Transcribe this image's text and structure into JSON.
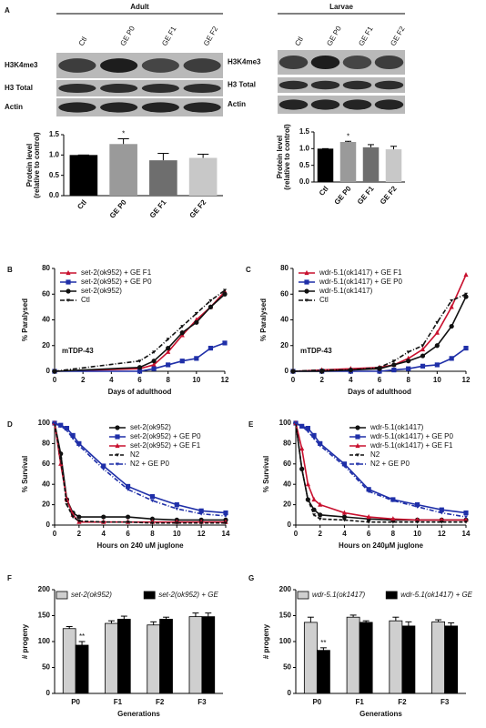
{
  "blots": [
    {
      "panel": "A",
      "title": "Adult",
      "lanes": [
        "Ctl",
        "GE P0",
        "GE F1",
        "GE F2"
      ],
      "rows": [
        "H3K4me3",
        "H3 Total",
        "Actin"
      ]
    },
    {
      "title": "Larvae",
      "lanes": [
        "Ctl",
        "GE P0",
        "GE F1",
        "GE F2"
      ],
      "rows": [
        "H3K4me3",
        "H3 Total",
        "Actin"
      ]
    }
  ],
  "chart_data": [
    {
      "type": "bar",
      "ylabel": [
        "Protein level",
        "(relative to control)"
      ],
      "categories": [
        "Ctl",
        "GE P0",
        "GE F1",
        "GE F2"
      ],
      "values": [
        1.0,
        1.27,
        0.87,
        0.93
      ],
      "errors": [
        0,
        0.13,
        0.17,
        0.09
      ],
      "colors": [
        "#000000",
        "#9a9a9a",
        "#6e6e6e",
        "#c8c8c8"
      ],
      "ylim": [
        0,
        1.5
      ],
      "yticks": [
        {
          "value": 0,
          "label": "0.0"
        },
        {
          "value": 0.5,
          "label": "0.5"
        },
        {
          "value": 1,
          "label": "1.0"
        },
        {
          "value": 1.5,
          "label": "1.5"
        }
      ],
      "annotations": [
        {
          "text": "*",
          "x": "GE P0"
        }
      ]
    },
    {
      "type": "bar",
      "ylabel": [
        "Protein level",
        "(relative to control)"
      ],
      "categories": [
        "Ctl",
        "GE P0",
        "GE F1",
        "GE F2"
      ],
      "values": [
        1.0,
        1.2,
        1.04,
        0.98
      ],
      "errors": [
        0,
        0.02,
        0.08,
        0.09
      ],
      "colors": [
        "#000000",
        "#9a9a9a",
        "#6e6e6e",
        "#c8c8c8"
      ],
      "ylim": [
        0,
        1.5
      ],
      "yticks": [
        {
          "value": 0,
          "label": "0.0"
        },
        {
          "value": 0.5,
          "label": "0.5"
        },
        {
          "value": 1,
          "label": "1.0"
        },
        {
          "value": 1.5,
          "label": "1.5"
        }
      ],
      "annotations": [
        {
          "text": "*",
          "x": "GE P0"
        }
      ]
    },
    {
      "type": "line",
      "panel": "B",
      "xlabel": "Days of adulthood",
      "ylabel": "% Paralysed",
      "annotation": "mTDP-43",
      "legend": "upper left",
      "x": [
        0,
        6,
        7,
        8,
        9,
        10,
        11,
        12
      ],
      "xlim": [
        0,
        12
      ],
      "xticks": [
        0,
        2,
        4,
        6,
        8,
        10,
        12
      ],
      "ylim": [
        0,
        80
      ],
      "yticks": [
        0,
        20,
        40,
        60,
        80
      ],
      "series": [
        {
          "name": "set-2(ok952) + GE F1",
          "color": "#c8102e",
          "marker": "triangle",
          "dash": "solid",
          "values": [
            0,
            2,
            5,
            15,
            28,
            40,
            50,
            62
          ]
        },
        {
          "name": "set-2(ok952) + GE P0",
          "color": "#1f2fa8",
          "marker": "square",
          "dash": "solid",
          "values": [
            0,
            0,
            2,
            5,
            8,
            10,
            18,
            22
          ]
        },
        {
          "name": "set-2(ok952)",
          "color": "#111111",
          "marker": "circle",
          "dash": "solid",
          "values": [
            0,
            3,
            8,
            18,
            30,
            38,
            50,
            60
          ]
        },
        {
          "name": "Ctl",
          "color": "#111111",
          "marker": "triangle-down",
          "dash": "dashdot",
          "values": [
            0,
            8,
            15,
            25,
            35,
            45,
            55,
            63
          ]
        }
      ]
    },
    {
      "type": "line",
      "panel": "C",
      "xlabel": "Days of adulthood",
      "ylabel": "% Paralysed",
      "annotation": "mTDP-43",
      "legend": "upper left",
      "x": [
        0,
        2,
        4,
        6,
        7,
        8,
        9,
        10,
        11,
        12
      ],
      "xlim": [
        0,
        12
      ],
      "xticks": [
        0,
        2,
        4,
        6,
        8,
        10,
        12
      ],
      "ylim": [
        0,
        80
      ],
      "yticks": [
        0,
        20,
        40,
        60,
        80
      ],
      "series": [
        {
          "name": "wdr-5.1(ok1417) + GE F1",
          "color": "#c8102e",
          "marker": "triangle",
          "dash": "solid",
          "values": [
            0,
            1,
            2,
            3,
            5,
            10,
            17,
            30,
            50,
            75
          ]
        },
        {
          "name": "wdr-5.1(ok1417) + GE P0",
          "color": "#1f2fa8",
          "marker": "square",
          "dash": "solid",
          "values": [
            0,
            0,
            0,
            0,
            1,
            2,
            4,
            5,
            10,
            18
          ]
        },
        {
          "name": "wdr-5.1(ok1417)",
          "color": "#111111",
          "marker": "circle",
          "dash": "solid",
          "values": [
            0,
            0,
            1,
            2,
            5,
            8,
            12,
            20,
            35,
            58
          ]
        },
        {
          "name": "Ctl",
          "color": "#111111",
          "marker": "triangle-down",
          "dash": "dashdot",
          "values": [
            0,
            1,
            1,
            3,
            8,
            15,
            20,
            38,
            55,
            60
          ]
        }
      ]
    },
    {
      "type": "line",
      "panel": "D",
      "xlabel": "Hours on 240 uM juglone",
      "ylabel": "% Survival",
      "legend": "upper right",
      "x": [
        0,
        0.5,
        1,
        1.5,
        2,
        4,
        6,
        8,
        10,
        12,
        14
      ],
      "xlim": [
        0,
        14
      ],
      "xticks": [
        0,
        2,
        4,
        6,
        8,
        10,
        12,
        14
      ],
      "ylim": [
        0,
        100
      ],
      "yticks": [
        0,
        20,
        40,
        60,
        80,
        100
      ],
      "series": [
        {
          "name": "set-2(ok952)",
          "color": "#111111",
          "marker": "circle",
          "dash": "solid",
          "values": [
            100,
            70,
            25,
            12,
            8,
            8,
            8,
            6,
            5,
            5,
            5
          ]
        },
        {
          "name": "set-2(ok952) + GE P0",
          "color": "#1f2fa8",
          "marker": "square",
          "dash": "solid",
          "values": [
            100,
            98,
            95,
            88,
            80,
            58,
            38,
            28,
            20,
            14,
            12
          ]
        },
        {
          "name": "set-2(ok952) + GE F1",
          "color": "#c8102e",
          "marker": "triangle",
          "dash": "solid",
          "values": [
            100,
            60,
            25,
            10,
            3,
            3,
            3,
            3,
            3,
            3,
            3
          ]
        },
        {
          "name": "N2",
          "color": "#111111",
          "marker": "triangle-down",
          "dash": "dashed",
          "values": [
            100,
            65,
            20,
            8,
            4,
            3,
            3,
            2,
            2,
            2,
            2
          ]
        },
        {
          "name": "N2 + GE P0",
          "color": "#1f2fa8",
          "marker": "triangle-down",
          "dash": "dashdot",
          "values": [
            100,
            97,
            93,
            85,
            78,
            55,
            35,
            24,
            16,
            11,
            9
          ]
        }
      ]
    },
    {
      "type": "line",
      "panel": "E",
      "xlabel": "Hours on 240μM juglone",
      "ylabel": "% Survival",
      "legend": "upper right",
      "x": [
        0,
        0.5,
        1,
        1.5,
        2,
        4,
        6,
        8,
        10,
        12,
        14
      ],
      "xlim": [
        0,
        14
      ],
      "xticks": [
        0,
        2,
        4,
        6,
        8,
        10,
        12,
        14
      ],
      "ylim": [
        0,
        100
      ],
      "yticks": [
        0,
        20,
        40,
        60,
        80,
        100
      ],
      "series": [
        {
          "name": "wdr-5.1(ok1417)",
          "color": "#111111",
          "marker": "circle",
          "dash": "solid",
          "values": [
            100,
            55,
            25,
            15,
            10,
            8,
            6,
            5,
            5,
            5,
            5
          ]
        },
        {
          "name": "wdr-5.1(ok1417) + GE P0",
          "color": "#1f2fa8",
          "marker": "square",
          "dash": "solid",
          "values": [
            100,
            97,
            95,
            88,
            80,
            60,
            35,
            25,
            20,
            15,
            12
          ]
        },
        {
          "name": "wdr-5.1(ok1417) + GE F1",
          "color": "#c8102e",
          "marker": "triangle",
          "dash": "solid",
          "values": [
            100,
            75,
            40,
            25,
            20,
            12,
            8,
            6,
            5,
            5,
            5
          ]
        },
        {
          "name": "N2",
          "color": "#111111",
          "marker": "triangle-down",
          "dash": "dashed",
          "values": [
            100,
            55,
            25,
            10,
            6,
            5,
            3,
            3,
            3,
            3,
            3
          ]
        },
        {
          "name": "N2 + GE P0",
          "color": "#1f2fa8",
          "marker": "triangle-down",
          "dash": "dashdot",
          "values": [
            100,
            97,
            92,
            85,
            78,
            58,
            33,
            24,
            18,
            12,
            8
          ]
        }
      ]
    },
    {
      "type": "grouped-bar",
      "panel": "F",
      "xlabel": "Generations",
      "ylabel": "# progeny",
      "categories": [
        "P0",
        "F1",
        "F2",
        "F3"
      ],
      "ylim": [
        0,
        200
      ],
      "yticks": [
        0,
        50,
        100,
        150,
        200
      ],
      "series": [
        {
          "name": "set-2(ok952)",
          "color": "#cfcfcf",
          "values": [
            125,
            135,
            132,
            148
          ],
          "errors": [
            4,
            5,
            6,
            7
          ]
        },
        {
          "name": "set-2(ok952) + GE",
          "color": "#000000",
          "values": [
            93,
            143,
            143,
            148
          ],
          "errors": [
            7,
            6,
            4,
            7
          ]
        }
      ],
      "annotations": [
        {
          "text": "**",
          "x": "P0",
          "series": "set-2(ok952) + GE"
        }
      ]
    },
    {
      "type": "grouped-bar",
      "panel": "G",
      "xlabel": "Generations",
      "ylabel": "# progeny",
      "categories": [
        "P0",
        "F1",
        "F2",
        "F3"
      ],
      "ylim": [
        0,
        200
      ],
      "yticks": [
        0,
        50,
        100,
        150,
        200
      ],
      "series": [
        {
          "name": "wdr-5.1(ok1417)",
          "color": "#cfcfcf",
          "values": [
            137,
            147,
            140,
            138
          ],
          "errors": [
            10,
            4,
            7,
            4
          ]
        },
        {
          "name": "wdr-5.1(ok1417) + GE",
          "color": "#000000",
          "values": [
            83,
            137,
            130,
            130
          ],
          "errors": [
            5,
            3,
            8,
            6
          ]
        }
      ],
      "annotations": [
        {
          "text": "**",
          "x": "P0",
          "series": "wdr-5.1(ok1417) + GE"
        }
      ]
    }
  ]
}
